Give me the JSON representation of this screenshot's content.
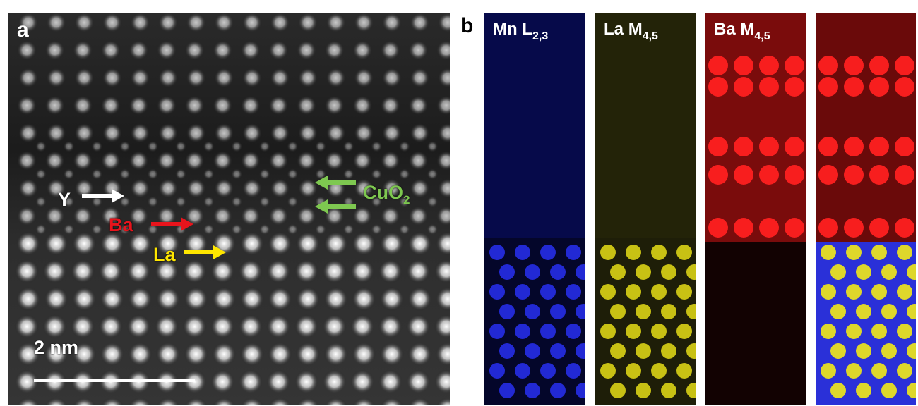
{
  "panel_a": {
    "letter": "a",
    "labels": {
      "y": "Y",
      "ba": "Ba",
      "la": "La",
      "cuo2_main": "CuO",
      "cuo2_sub": "2"
    },
    "scale_bar": "2 nm",
    "colors": {
      "y": "#ffffff",
      "ba": "#e8141c",
      "la": "#ffe600",
      "cuo2": "#7ec850"
    }
  },
  "panel_b": {
    "letter": "b",
    "maps": [
      {
        "name": "Mn",
        "edge": "L",
        "sub": "2,3",
        "color": "#1e28ff"
      },
      {
        "name": "La",
        "edge": "M",
        "sub": "4,5",
        "color": "#f0e614"
      },
      {
        "name": "Ba",
        "edge": "M",
        "sub": "4,5",
        "color": "#ff1e1e"
      },
      {
        "name": "",
        "edge": "",
        "sub": "",
        "color": "composite"
      }
    ]
  }
}
